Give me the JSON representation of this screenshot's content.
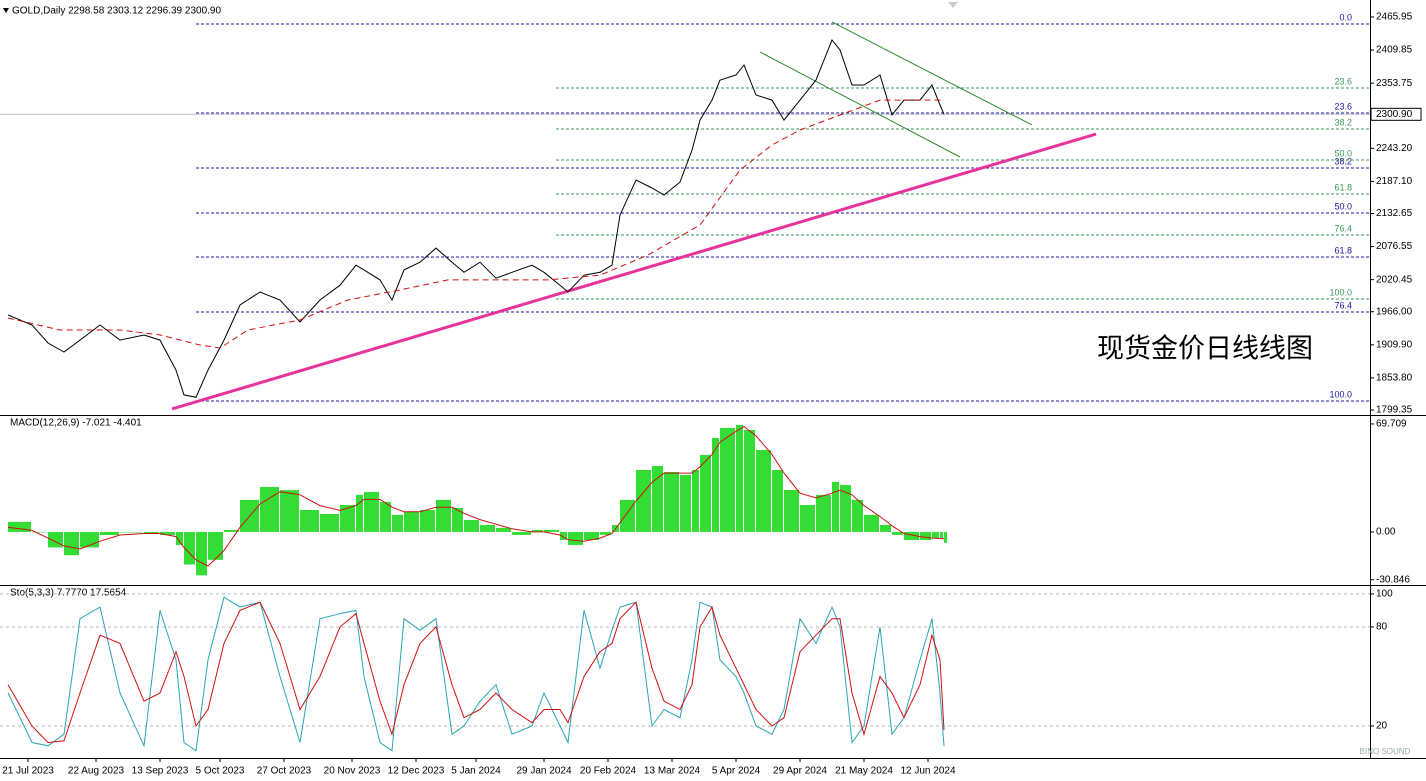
{
  "chart_data": [
    {
      "type": "line",
      "title": "GOLD,Daily  2298.58 2303.12 2296.39 2300.90",
      "x": [
        0,
        6,
        10,
        14,
        18,
        23,
        28,
        34,
        38,
        42,
        44,
        47,
        50,
        54,
        58,
        63,
        68,
        73,
        78,
        83,
        87,
        89,
        93,
        96,
        99,
        103,
        107,
        111,
        114,
        118,
        122,
        126,
        131,
        134,
        138,
        140,
        144,
        148,
        151,
        153,
        157,
        161,
        164,
        168,
        171,
        173,
        176,
        178,
        182,
        184,
        187,
        191,
        194,
        198,
        202,
        206,
        208,
        211,
        214,
        218,
        221,
        224,
        228,
        231,
        233,
        234
      ],
      "series": [
        {
          "type": "line",
          "style": "solid",
          "color": "#000000",
          "values": [
            1960.5,
            1943.6,
            1913,
            1897.8,
            1918,
            1943.6,
            1918,
            1926.6,
            1918,
            1867,
            1825,
            1821,
            1867,
            1918,
            1977.5,
            1999.5,
            1986,
            1948.7,
            1986,
            2011,
            2045,
            2037,
            2020,
            1986,
            2037,
            2050,
            2074,
            2050,
            2033,
            2050,
            2023,
            2033,
            2045,
            2033,
            2011,
            1999.5,
            2028,
            2033,
            2045,
            2130,
            2189.5,
            2176,
            2164,
            2186,
            2240,
            2291,
            2325,
            2359,
            2367.5,
            2384.5,
            2333.6,
            2325,
            2291,
            2325,
            2359,
            2427,
            2410,
            2350.6,
            2350.6,
            2367.5,
            2299.7,
            2325,
            2325,
            2350.6,
            2316.7,
            2300.9
          ]
        },
        {
          "type": "line",
          "style": "dashed",
          "color": "#d01010",
          "x": [
            0,
            13,
            28,
            38,
            48,
            53,
            60,
            73,
            85,
            98,
            110,
            123,
            135,
            148,
            160,
            173,
            183,
            191,
            198,
            208,
            218,
            228,
            234
          ],
          "values": [
            1955.4,
            1935.1,
            1935.1,
            1926.6,
            1909.7,
            1904.6,
            1935.1,
            1952.1,
            1986,
            2003,
            2020,
            2020,
            2020,
            2028,
            2062.3,
            2113.2,
            2206.5,
            2248.9,
            2274.3,
            2299.7,
            2325,
            2325,
            2325
          ]
        }
      ],
      "xlim": [
        -2,
        340.5
      ],
      "ylim": [
        1792.6,
        2486.3
      ],
      "yticks": [
        2465.95,
        2409.85,
        2353.75,
        {
          "value": 2243.2,
          "label": "2243.20"
        },
        {
          "value": 2187.1,
          "label": "2187.10"
        },
        2132.65,
        2076.55,
        2020.45,
        {
          "value": 1966,
          "label": "1966.00"
        },
        {
          "value": 1909.9,
          "label": "1909.90"
        },
        {
          "value": 1853.8,
          "label": "1853.80"
        },
        1799.35
      ],
      "current_price": {
        "value": 2300.9,
        "label": "2300.90"
      },
      "fib_levels": [
        {
          "label": "0.0",
          "value": 2454.1,
          "color": "#1a1aa0",
          "from": 47
        },
        {
          "label": "23.6",
          "value": 2303.1,
          "color": "#1a1aa0",
          "from": 47
        },
        {
          "label": "38.2",
          "value": 2209.9,
          "color": "#1a1aa0",
          "from": 47
        },
        {
          "label": "50.0",
          "value": 2133.5,
          "color": "#1a1aa0",
          "from": 47
        },
        {
          "label": "61.8",
          "value": 2058.9,
          "color": "#1a1aa0",
          "from": 47
        },
        {
          "label": "76.4",
          "value": 1965.6,
          "color": "#1a1aa0",
          "from": 47
        },
        {
          "label": "100.0",
          "value": 1814.7,
          "color": "#1a1aa0",
          "from": 47
        },
        {
          "label": "23.6",
          "value": 2345.5,
          "color": "#3c9a5c",
          "from": 137
        },
        {
          "label": "38.2",
          "value": 2276,
          "color": "#3c9a5c",
          "from": 137
        },
        {
          "label": "50.0",
          "value": 2223.4,
          "color": "#3c9a5c",
          "from": 137
        },
        {
          "label": "61.8",
          "value": 2165.7,
          "color": "#3c9a5c",
          "from": 137
        },
        {
          "label": "76.4",
          "value": 2096.2,
          "color": "#3c9a5c",
          "from": 137
        },
        {
          "label": "100.0",
          "value": 1987.7,
          "color": "#3c9a5c",
          "from": 137
        }
      ],
      "trendlines": [
        {
          "color": "#e8329c",
          "style": "thick",
          "x": [
            41,
            272
          ],
          "y": [
            1801.1,
            2267.5
          ]
        },
        {
          "color": "#2e8b2e",
          "style": "thin",
          "x": [
            206,
            256
          ],
          "y": [
            2457.5,
            2282.8
          ]
        },
        {
          "color": "#2e8b2e",
          "style": "thin",
          "x": [
            188,
            238
          ],
          "y": [
            2406.6,
            2228.5
          ]
        }
      ],
      "annotation": "现货金价日线线图"
    },
    {
      "type": "bar",
      "title": "MACD(12,26,9) -7.021 -4.401",
      "x": [
        0,
        6,
        10,
        14,
        18,
        23,
        28,
        34,
        38,
        42,
        44,
        47,
        50,
        54,
        58,
        63,
        68,
        73,
        78,
        83,
        87,
        89,
        93,
        96,
        99,
        103,
        107,
        111,
        114,
        118,
        122,
        126,
        131,
        134,
        138,
        140,
        144,
        148,
        151,
        153,
        157,
        161,
        164,
        168,
        171,
        173,
        176,
        178,
        182,
        184,
        187,
        191,
        194,
        198,
        202,
        206,
        208,
        211,
        214,
        218,
        221,
        224,
        228,
        231,
        233,
        234
      ],
      "series": [
        {
          "type": "bar",
          "color": "#33dd33",
          "values": [
            6.5,
            0,
            -10,
            -15,
            -10,
            -2,
            0,
            -1.3,
            -2,
            -8.4,
            -21,
            -28,
            -18,
            1.3,
            20.7,
            29,
            27,
            14.2,
            11.6,
            17.4,
            23.9,
            25.8,
            19.4,
            11,
            12.9,
            14.2,
            20.7,
            15.5,
            7.7,
            4.5,
            2.6,
            -1.9,
            1.3,
            1.3,
            -5.2,
            -8.4,
            -5.2,
            -1.9,
            4.5,
            20.7,
            40,
            42.6,
            38.7,
            36.8,
            40,
            49.7,
            60.7,
            67.1,
            69.1,
            65.8,
            52.9,
            40,
            27.1,
            17.4,
            23.9,
            32.3,
            30.3,
            20.7,
            11,
            4.5,
            -1.9,
            -5.2,
            -5.2,
            -3.9,
            -3.9,
            -7.021
          ]
        },
        {
          "type": "line",
          "style": "solid",
          "color": "#d01010",
          "values": [
            3,
            1,
            -4,
            -9,
            -11,
            -6,
            -2,
            -1,
            -1,
            -3,
            -10,
            -18,
            -22,
            -12,
            3,
            18,
            26,
            24,
            17,
            14,
            17,
            21,
            21,
            16,
            13,
            13,
            16,
            16,
            12,
            8,
            5,
            2,
            0,
            0,
            -2,
            -5,
            -6,
            -4,
            -1,
            6,
            20,
            32,
            38,
            38,
            38,
            42,
            50,
            58,
            65,
            68,
            62,
            50,
            38,
            25,
            22,
            25,
            27,
            24,
            17,
            10,
            4,
            -1,
            -3,
            -4,
            -4.2,
            -4.401
          ]
        }
      ],
      "xlim": [
        -2,
        340.5
      ],
      "ylim": [
        -33.6,
        74.2
      ],
      "yticks": [
        69.709,
        {
          "value": 0,
          "label": "0.00"
        },
        -30.846
      ]
    },
    {
      "type": "line",
      "title": "Sto(5,3,3) 7.7770 17.5654",
      "x": [
        0,
        6,
        10,
        14,
        18,
        23,
        28,
        34,
        38,
        42,
        44,
        47,
        50,
        54,
        58,
        63,
        68,
        73,
        78,
        83,
        87,
        89,
        93,
        96,
        99,
        103,
        107,
        111,
        114,
        118,
        122,
        126,
        131,
        134,
        138,
        140,
        144,
        148,
        151,
        153,
        157,
        161,
        164,
        168,
        171,
        173,
        176,
        178,
        182,
        184,
        187,
        191,
        194,
        198,
        202,
        206,
        208,
        211,
        214,
        218,
        221,
        224,
        228,
        231,
        233,
        234
      ],
      "series": [
        {
          "type": "line",
          "style": "solid",
          "color": "#2aa5b5",
          "values": [
            40,
            10,
            8,
            15,
            85,
            92,
            40,
            8,
            90,
            60,
            10,
            5,
            60,
            98,
            92,
            95,
            50,
            10,
            85,
            88,
            90,
            50,
            10,
            5,
            85,
            78,
            85,
            15,
            20,
            35,
            45,
            15,
            20,
            40,
            20,
            10,
            90,
            55,
            78,
            92,
            95,
            20,
            30,
            25,
            60,
            95,
            92,
            60,
            50,
            40,
            20,
            15,
            30,
            85,
            70,
            92,
            80,
            10,
            20,
            80,
            15,
            25,
            60,
            85,
            40,
            7.777
          ]
        },
        {
          "type": "line",
          "style": "solid",
          "color": "#d01010",
          "values": [
            45,
            20,
            10,
            11,
            40,
            75,
            70,
            35,
            40,
            65,
            50,
            20,
            30,
            70,
            90,
            95,
            70,
            30,
            50,
            80,
            88,
            70,
            35,
            15,
            45,
            70,
            80,
            45,
            25,
            30,
            40,
            30,
            22,
            30,
            30,
            22,
            50,
            65,
            70,
            85,
            95,
            55,
            35,
            30,
            45,
            80,
            92,
            75,
            55,
            45,
            30,
            20,
            25,
            65,
            75,
            85,
            85,
            40,
            15,
            50,
            40,
            25,
            45,
            75,
            60,
            17.5654
          ]
        }
      ],
      "xlim": [
        -2,
        340.5
      ],
      "ylim": [
        1.2,
        104.2
      ],
      "yticks": [
        100,
        80,
        20
      ],
      "grid": true,
      "xticks": [
        {
          "value": 5,
          "label": "21 Jul 2023"
        },
        {
          "value": 22,
          "label": "22 Aug 2023"
        },
        {
          "value": 38,
          "label": "13 Sep 2023"
        },
        {
          "value": 53,
          "label": "5 Oct 2023"
        },
        {
          "value": 69,
          "label": "27 Oct 2023"
        },
        {
          "value": 86,
          "label": "20 Nov 2023"
        },
        {
          "value": 102,
          "label": "12 Dec 2023"
        },
        {
          "value": 117,
          "label": "5 Jan 2024"
        },
        {
          "value": 134,
          "label": "29 Jan 2024"
        },
        {
          "value": 150,
          "label": "20 Feb 2024"
        },
        {
          "value": 166,
          "label": "13 Mar 2024"
        },
        {
          "value": 182,
          "label": "5 Apr 2024"
        },
        {
          "value": 198,
          "label": "29 Apr 2024"
        },
        {
          "value": 214,
          "label": "21 May 2024"
        },
        {
          "value": 230,
          "label": "12 Jun 2024"
        }
      ],
      "watermark": "BINO SOUND"
    }
  ]
}
